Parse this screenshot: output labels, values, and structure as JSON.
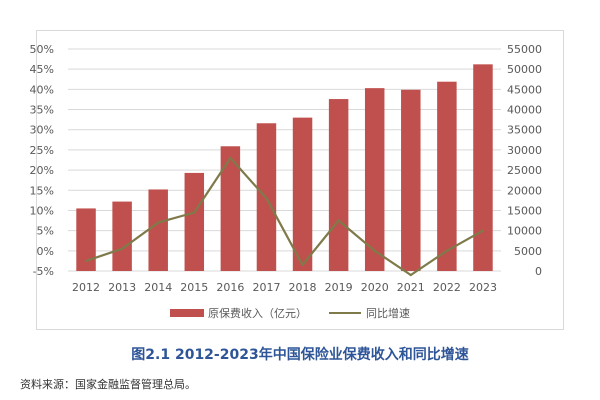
{
  "caption": "图2.1 2012-2023年中国保险业保费收入和同比增速",
  "source": "资料来源：国家金融监督管理总局。",
  "colors": {
    "bar": "#c0504d",
    "line": "#7f7a4a",
    "grid": "#d9d9d9",
    "text": "#595959",
    "caption": "#2e5597"
  },
  "chart_data": {
    "type": "bar",
    "title": "",
    "categories": [
      "2012",
      "2013",
      "2014",
      "2015",
      "2016",
      "2017",
      "2018",
      "2019",
      "2020",
      "2021",
      "2022",
      "2023"
    ],
    "series": [
      {
        "name": "原保费收入（亿元）",
        "type": "bar",
        "axis": "right",
        "values": [
          15500,
          17200,
          20200,
          24300,
          30900,
          36600,
          38000,
          42600,
          45300,
          44900,
          46900,
          51200
        ]
      },
      {
        "name": "同比增速",
        "type": "line",
        "axis": "left",
        "values": [
          -2.5,
          0.5,
          7,
          9.5,
          23,
          13,
          -3.5,
          7.5,
          0,
          -6,
          0,
          5
        ]
      }
    ],
    "y_left": {
      "ticks": [
        "50%",
        "45%",
        "40%",
        "35%",
        "30%",
        "25%",
        "20%",
        "15%",
        "10%",
        "5%",
        "0%",
        "-5%"
      ],
      "min": -5,
      "max": 50,
      "unit": "%"
    },
    "y_right": {
      "ticks": [
        "55000",
        "50000",
        "45000",
        "40000",
        "35000",
        "30000",
        "25000",
        "20000",
        "15000",
        "10000",
        "5000",
        "0"
      ],
      "min": 0,
      "max": 55000
    },
    "grid": true,
    "legend_position": "bottom"
  }
}
